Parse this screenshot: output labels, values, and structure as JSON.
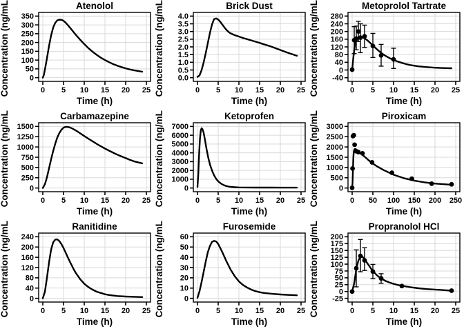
{
  "figure": {
    "name": "pk-concentration-time-grid",
    "xlabel": "Time (h)",
    "ylabel": "Concentration (ng/mL)"
  },
  "colors": {
    "background": "#ffffff",
    "panel_border": "#000000",
    "grid": "#d9d9d9",
    "line": "#000000",
    "point": "#000000",
    "text": "#000000"
  },
  "chart_data": [
    {
      "type": "line",
      "title": "Atenolol",
      "xlabel": "Time (h)",
      "ylabel": "Concentration (ng/mL)",
      "xlim": [
        -1,
        26
      ],
      "ylim": [
        -21,
        371
      ],
      "xtick_values": [
        0,
        5,
        10,
        15,
        20,
        25
      ],
      "xtick_labels": [
        "0",
        "5",
        "10",
        "15",
        "20",
        "25"
      ],
      "ytick_values": [
        0,
        50,
        100,
        150,
        200,
        250,
        300,
        350
      ],
      "ytick_labels": [
        "0",
        "50",
        "100",
        "150",
        "200",
        "250",
        "300",
        "350"
      ],
      "curve": {
        "x": [
          0,
          0.25,
          0.5,
          1,
          1.5,
          2,
          2.5,
          3,
          3.5,
          4,
          4.5,
          5,
          5.5,
          6,
          7,
          8,
          9,
          10,
          11,
          12,
          13,
          14,
          15,
          16,
          17,
          18,
          19,
          20,
          21,
          22,
          23,
          24
        ],
        "y": [
          0,
          15,
          45,
          110,
          180,
          240,
          285,
          312,
          326,
          330,
          329,
          323,
          313,
          300,
          272,
          243,
          216,
          191,
          168,
          148,
          130,
          114,
          100,
          88,
          77,
          68,
          60,
          53,
          47,
          42,
          38,
          34
        ]
      }
    },
    {
      "type": "line",
      "title": "Brick Dust",
      "xlabel": "Time (h)",
      "ylabel": "Concentration (ng/mL)",
      "xlim": [
        -1,
        26
      ],
      "ylim": [
        -0.24,
        4.24
      ],
      "xtick_values": [
        0,
        5,
        10,
        15,
        20,
        25
      ],
      "xtick_labels": [
        "0",
        "5",
        "10",
        "15",
        "20",
        "25"
      ],
      "ytick_values": [
        0,
        0.5,
        1,
        1.5,
        2,
        2.5,
        3,
        3.5,
        4
      ],
      "ytick_labels": [
        "0.0",
        "0.5",
        "1.0",
        "1.5",
        "2.0",
        "2.5",
        "3.0",
        "3.5",
        "4.0"
      ],
      "curve": {
        "x": [
          0,
          0.5,
          1,
          1.5,
          2,
          2.5,
          3,
          3.5,
          4,
          4.5,
          5,
          5.5,
          6,
          6.5,
          7,
          7.5,
          8,
          9,
          10,
          11,
          12,
          13,
          14,
          15,
          16,
          17,
          18,
          19,
          20,
          21,
          22,
          23,
          24
        ],
        "y": [
          0.05,
          0.15,
          0.5,
          1.0,
          1.6,
          2.25,
          2.9,
          3.45,
          3.8,
          3.85,
          3.78,
          3.63,
          3.45,
          3.27,
          3.1,
          2.97,
          2.88,
          2.76,
          2.67,
          2.58,
          2.5,
          2.42,
          2.34,
          2.26,
          2.17,
          2.09,
          2.0,
          1.9,
          1.8,
          1.7,
          1.6,
          1.51,
          1.42
        ]
      }
    },
    {
      "type": "line",
      "title": "Metoprolol Tartrate",
      "xlabel": "Time (h)",
      "ylabel": "Concentration (ng/mL)",
      "xlim": [
        -1,
        26
      ],
      "ylim": [
        -59,
        299
      ],
      "xtick_values": [
        0,
        5,
        10,
        15,
        20,
        25
      ],
      "xtick_labels": [
        "0",
        "5",
        "10",
        "15",
        "20",
        "25"
      ],
      "ytick_values": [
        -40,
        0,
        40,
        80,
        120,
        160,
        200,
        240,
        280
      ],
      "ytick_labels": [
        "-40",
        "0",
        "40",
        "80",
        "120",
        "160",
        "200",
        "240",
        "280"
      ],
      "curve": {
        "x": [
          0,
          0.25,
          0.5,
          0.75,
          1,
          1.25,
          1.5,
          2,
          2.5,
          3,
          3.5,
          4,
          4.5,
          5,
          5.5,
          6,
          7,
          8,
          9,
          10,
          11,
          12,
          13,
          14,
          16,
          18,
          20,
          22,
          24
        ],
        "y": [
          0,
          55,
          105,
          140,
          158,
          166,
          170,
          172,
          170,
          165,
          157,
          148,
          138,
          127,
          117,
          107,
          89,
          74,
          62,
          52,
          44,
          37,
          31,
          26,
          19,
          15,
          12,
          10,
          9
        ]
      },
      "points": {
        "x": [
          0,
          0.5,
          1,
          1.5,
          2,
          3,
          5,
          7,
          10
        ],
        "y": [
          2,
          155,
          163,
          200,
          168,
          175,
          125,
          76,
          55
        ],
        "lo": [
          null,
          85,
          105,
          148,
          90,
          117,
          65,
          20,
          8
        ],
        "hi": [
          null,
          225,
          228,
          253,
          240,
          233,
          190,
          133,
          113
        ]
      }
    },
    {
      "type": "line",
      "title": "Carbamazepine",
      "xlabel": "Time (h)",
      "ylabel": "Concentration (ng/mL)",
      "xlim": [
        -1,
        26
      ],
      "ylim": [
        -90,
        1590
      ],
      "xtick_values": [
        0,
        5,
        10,
        15,
        20,
        25
      ],
      "xtick_labels": [
        "0",
        "5",
        "10",
        "15",
        "20",
        "25"
      ],
      "ytick_values": [
        0,
        250,
        500,
        750,
        1000,
        1250,
        1500
      ],
      "ytick_labels": [
        "0",
        "250",
        "500",
        "750",
        "1000",
        "1250",
        "1500"
      ],
      "curve": {
        "x": [
          0,
          0.5,
          1,
          1.5,
          2,
          2.5,
          3,
          3.5,
          4,
          4.5,
          5,
          5.5,
          6,
          6.5,
          7,
          8,
          9,
          10,
          11,
          12,
          13,
          14,
          15,
          16,
          17,
          18,
          19,
          20,
          21,
          22,
          23,
          24
        ],
        "y": [
          0,
          90,
          260,
          480,
          700,
          900,
          1080,
          1230,
          1340,
          1420,
          1470,
          1490,
          1488,
          1475,
          1455,
          1400,
          1335,
          1268,
          1202,
          1138,
          1076,
          1017,
          962,
          909,
          860,
          813,
          769,
          728,
          688,
          651,
          625,
          600
        ]
      }
    },
    {
      "type": "line",
      "title": "Ketoprofen",
      "xlabel": "Time (h)",
      "ylabel": "Concentration (ng/mL)",
      "xlim": [
        -1,
        26
      ],
      "ylim": [
        -420,
        7420
      ],
      "xtick_values": [
        0,
        5,
        10,
        15,
        20,
        25
      ],
      "xtick_labels": [
        "0",
        "5",
        "10",
        "15",
        "20",
        "25"
      ],
      "ytick_values": [
        0,
        1000,
        2000,
        3000,
        4000,
        5000,
        6000,
        7000
      ],
      "ytick_labels": [
        "0",
        "1000",
        "2000",
        "3000",
        "4000",
        "5000",
        "6000",
        "7000"
      ],
      "curve": {
        "x": [
          0,
          0.2,
          0.4,
          0.6,
          0.8,
          1,
          1.2,
          1.5,
          1.8,
          2.2,
          2.6,
          3,
          3.5,
          4,
          4.5,
          5,
          5.5,
          6,
          6.5,
          7,
          7.5,
          8,
          9,
          10,
          12,
          14,
          16,
          18,
          20,
          22,
          24
        ],
        "y": [
          120,
          1600,
          3900,
          5600,
          6550,
          6800,
          6700,
          6250,
          5500,
          4400,
          3450,
          2700,
          2000,
          1450,
          1050,
          770,
          560,
          410,
          300,
          220,
          165,
          130,
          90,
          70,
          55,
          50,
          48,
          47,
          46,
          45,
          45
        ]
      }
    },
    {
      "type": "line",
      "title": "Piroxicam",
      "xlabel": "Time (h)",
      "ylabel": "Concentration (ng/mL)",
      "xlim": [
        -10,
        260
      ],
      "ylim": [
        -180,
        3180
      ],
      "xtick_values": [
        0,
        50,
        100,
        150,
        200,
        250
      ],
      "xtick_labels": [
        "0",
        "50",
        "100",
        "150",
        "200",
        "250"
      ],
      "ytick_values": [
        0,
        500,
        1000,
        1500,
        2000,
        2500,
        3000
      ],
      "ytick_labels": [
        "0",
        "500",
        "1000",
        "1500",
        "2000",
        "2500",
        "3000"
      ],
      "curve": {
        "x": [
          0,
          1,
          2,
          3,
          4,
          5,
          6,
          8,
          10,
          15,
          20,
          25,
          30,
          40,
          50,
          60,
          75,
          100,
          125,
          150,
          175,
          200,
          220,
          240
        ],
        "y": [
          0,
          250,
          900,
          1500,
          1780,
          1860,
          1895,
          1900,
          1875,
          1790,
          1700,
          1610,
          1530,
          1350,
          1190,
          1055,
          885,
          645,
          480,
          360,
          275,
          215,
          185,
          160
        ]
      },
      "points": {
        "x": [
          0,
          1,
          2,
          4,
          6,
          10,
          15,
          25,
          48,
          96,
          144,
          192,
          240
        ],
        "y": [
          10,
          950,
          2530,
          2570,
          2110,
          1790,
          1750,
          1690,
          1250,
          745,
          455,
          210,
          180
        ],
        "lo": [
          null,
          null,
          null,
          null,
          null,
          null,
          null,
          null,
          null,
          null,
          null,
          null,
          null
        ],
        "hi": [
          null,
          null,
          null,
          null,
          null,
          null,
          null,
          null,
          null,
          null,
          null,
          null,
          null
        ]
      }
    },
    {
      "type": "line",
      "title": "Ranitidine",
      "xlabel": "Time (h)",
      "ylabel": "Concentration (ng/mL)",
      "xlim": [
        -1,
        26
      ],
      "ylim": [
        -14.4,
        254.4
      ],
      "xtick_values": [
        0,
        5,
        10,
        15,
        20,
        25
      ],
      "xtick_labels": [
        "0",
        "5",
        "10",
        "15",
        "20",
        "25"
      ],
      "ytick_values": [
        0,
        40,
        80,
        120,
        160,
        200,
        240
      ],
      "ytick_labels": [
        "0",
        "40",
        "80",
        "120",
        "160",
        "200",
        "240"
      ],
      "curve": {
        "x": [
          0,
          0.5,
          1,
          1.5,
          2,
          2.5,
          3,
          3.5,
          4,
          4.5,
          5,
          5.5,
          6,
          6.5,
          7,
          7.5,
          8,
          9,
          10,
          11,
          12,
          13,
          14,
          15,
          16,
          18,
          20,
          22,
          24
        ],
        "y": [
          0,
          25,
          80,
          140,
          190,
          218,
          229,
          230,
          223,
          211,
          196,
          179,
          161,
          144,
          128,
          112,
          98,
          75,
          57,
          44,
          34,
          26,
          21,
          16,
          13,
          9,
          7,
          6,
          5
        ]
      }
    },
    {
      "type": "line",
      "title": "Furosemide",
      "xlabel": "Time (h)",
      "ylabel": "Concentration (ng/mL)",
      "xlim": [
        -1,
        26
      ],
      "ylim": [
        -3.6,
        63.6
      ],
      "xtick_values": [
        0,
        5,
        10,
        15,
        20,
        25
      ],
      "xtick_labels": [
        "0",
        "5",
        "10",
        "15",
        "20",
        "25"
      ],
      "ytick_values": [
        0,
        10,
        20,
        30,
        40,
        50,
        60
      ],
      "ytick_labels": [
        "0",
        "10",
        "20",
        "30",
        "40",
        "50",
        "60"
      ],
      "curve": {
        "x": [
          0,
          0.5,
          1,
          1.5,
          2,
          2.5,
          3,
          3.5,
          4,
          4.5,
          5,
          5.5,
          6,
          6.5,
          7,
          7.5,
          8,
          9,
          10,
          11,
          12,
          13,
          14,
          15,
          16,
          18,
          20,
          22,
          24
        ],
        "y": [
          0.5,
          7,
          16,
          26,
          36,
          45,
          51,
          55,
          56,
          55.5,
          53,
          49,
          45,
          40.5,
          36,
          32,
          28,
          21.5,
          16.5,
          13,
          10.5,
          8.5,
          7,
          6,
          5.3,
          4.4,
          3.8,
          3.3,
          3
        ]
      }
    },
    {
      "type": "line",
      "title": "Propranolol HCl",
      "xlabel": "Time (h)",
      "ylabel": "Concentration (ng/mL)",
      "xlim": [
        -1,
        26
      ],
      "ylim": [
        -38.5,
        213.5
      ],
      "xtick_values": [
        0,
        5,
        10,
        15,
        20,
        25
      ],
      "xtick_labels": [
        "0",
        "5",
        "10",
        "15",
        "20",
        "25"
      ],
      "ytick_values": [
        -25,
        0,
        25,
        50,
        75,
        100,
        125,
        150,
        175,
        200
      ],
      "ytick_labels": [
        "-25",
        "0",
        "25",
        "50",
        "75",
        "100",
        "125",
        "150",
        "175",
        "200"
      ],
      "curve": {
        "x": [
          0,
          0.5,
          1,
          1.5,
          2,
          2.5,
          3,
          3.5,
          4,
          4.5,
          5,
          5.5,
          6,
          6.5,
          7,
          8,
          9,
          10,
          11,
          12,
          14,
          16,
          18,
          20,
          22,
          24
        ],
        "y": [
          0,
          30,
          83,
          113,
          128,
          127,
          118,
          107,
          96,
          85,
          75,
          67,
          59,
          53,
          48,
          39,
          33,
          28,
          24,
          21,
          16,
          12,
          9,
          7,
          5,
          3
        ]
      },
      "points": {
        "x": [
          0,
          1,
          2,
          3,
          5,
          7,
          12,
          24
        ],
        "y": [
          0,
          85,
          130,
          114,
          73,
          48,
          20,
          3
        ],
        "lo": [
          null,
          17,
          72,
          77,
          47,
          30,
          null,
          null
        ],
        "hi": [
          null,
          152,
          190,
          160,
          99,
          65,
          null,
          null
        ]
      }
    }
  ]
}
